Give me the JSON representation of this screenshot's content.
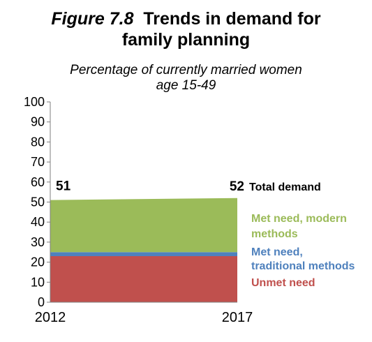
{
  "title": {
    "figure_number": "Figure 7.8",
    "line1": "Trends in demand for",
    "line2": "family planning"
  },
  "subtitle": {
    "line1": "Percentage of currently married women",
    "line2": "age 15-49"
  },
  "colors": {
    "unmet_need": "#c0504d",
    "traditional": "#4f81bd",
    "modern": "#9bbb59",
    "axis": "#7f7f7f"
  },
  "chart_data": {
    "type": "area",
    "stacked": true,
    "x": [
      "2012",
      "2017"
    ],
    "ylim": [
      0,
      100
    ],
    "yticks": [
      "0",
      "10",
      "20",
      "30",
      "40",
      "50",
      "60",
      "70",
      "80",
      "90",
      "100"
    ],
    "series": [
      {
        "name": "Unmet need",
        "values": [
          23,
          23
        ],
        "color": "#c0504d"
      },
      {
        "name": "Met need, traditional methods",
        "values": [
          2,
          2
        ],
        "color": "#4f81bd"
      },
      {
        "name": "Met need, modern methods",
        "values": [
          26,
          27
        ],
        "color": "#9bbb59"
      }
    ],
    "total_demand": {
      "label": "Total demand",
      "values": [
        "51",
        "52"
      ]
    },
    "legend": {
      "modern_line1": "Met need, modern",
      "modern_line2": "methods",
      "traditional_line1": "Met need,",
      "traditional_line2": "traditional methods",
      "unmet": "Unmet need"
    },
    "grid": false,
    "legend_placement": "right"
  }
}
